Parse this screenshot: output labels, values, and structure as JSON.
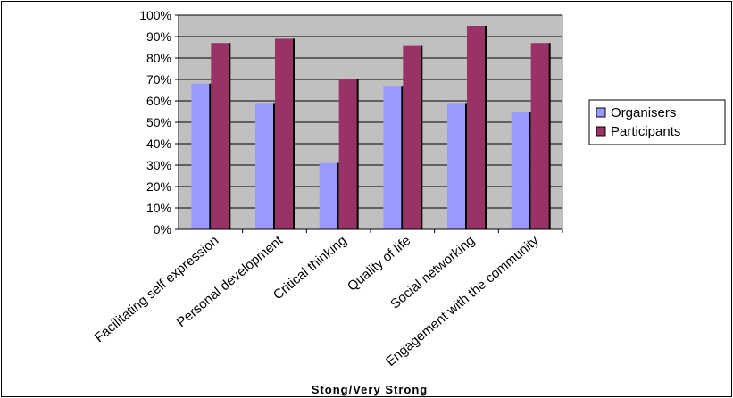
{
  "chart_data": {
    "type": "bar",
    "xlabel": "Stong/Very Strong",
    "ylabel": "",
    "title": "",
    "ylim": [
      0,
      100
    ],
    "yticks": [
      "0%",
      "10%",
      "20%",
      "30%",
      "40%",
      "50%",
      "60%",
      "70%",
      "80%",
      "90%",
      "100%"
    ],
    "categories": [
      "Facilitating self expression",
      "Personal development",
      "Critical thinking",
      "Quality of life",
      "Social networking",
      "Engagement with the community"
    ],
    "series": [
      {
        "name": "Organisers",
        "color": "#9999ff",
        "values": [
          68,
          59,
          31,
          67,
          59,
          55
        ]
      },
      {
        "name": "Participants",
        "color": "#993366",
        "values": [
          87,
          89,
          70,
          86,
          95,
          87
        ]
      }
    ],
    "plot_background": "#c0c0c0",
    "grid": true,
    "legend": "right"
  }
}
